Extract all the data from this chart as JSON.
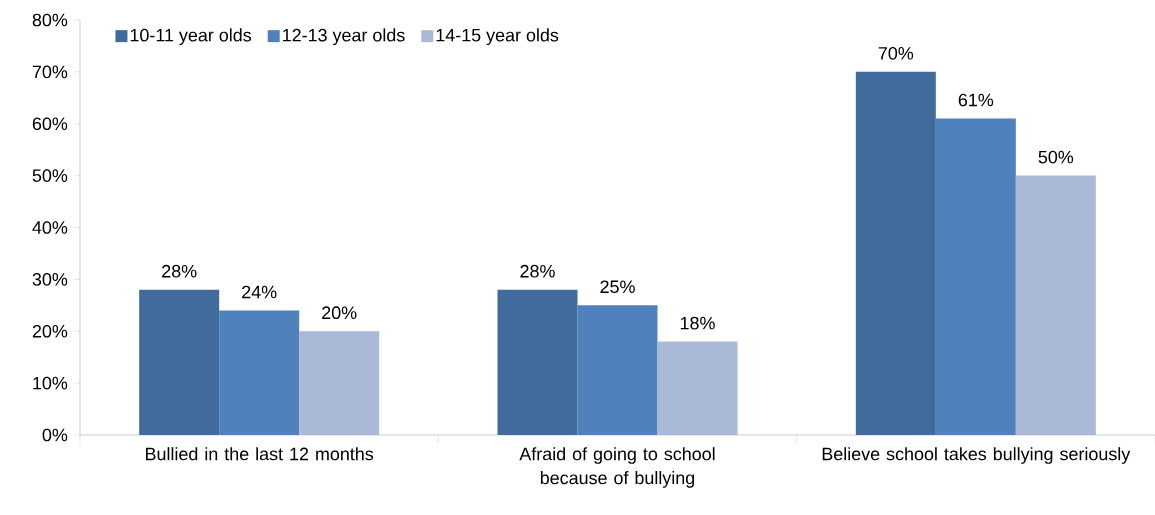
{
  "chart_data": {
    "type": "bar",
    "categories": [
      "Bullied in the last 12 months",
      "Afraid of going to school because of bullying",
      "Believe school takes bullying seriously"
    ],
    "series": [
      {
        "name": "10-11 year olds",
        "color": "#406b9c",
        "values": [
          28,
          28,
          70
        ],
        "value_labels": [
          "28%",
          "28%",
          "70%"
        ]
      },
      {
        "name": "12-13 year olds",
        "color": "#4f81bd",
        "values": [
          24,
          25,
          61
        ],
        "value_labels": [
          "24%",
          "25%",
          "61%"
        ]
      },
      {
        "name": "14-15 year olds",
        "color": "#aab9d8",
        "values": [
          20,
          18,
          50
        ],
        "value_labels": [
          "20%",
          "18%",
          "50%"
        ]
      }
    ],
    "ylim": [
      0,
      80
    ],
    "yticks": [
      {
        "value": 0,
        "label": "0%"
      },
      {
        "value": 10,
        "label": "10%"
      },
      {
        "value": 20,
        "label": "20%"
      },
      {
        "value": 30,
        "label": "30%"
      },
      {
        "value": 40,
        "label": "40%"
      },
      {
        "value": 50,
        "label": "50%"
      },
      {
        "value": 60,
        "label": "60%"
      },
      {
        "value": 70,
        "label": "70%"
      },
      {
        "value": 80,
        "label": "80%"
      }
    ],
    "grid": false,
    "legend": "top left"
  }
}
